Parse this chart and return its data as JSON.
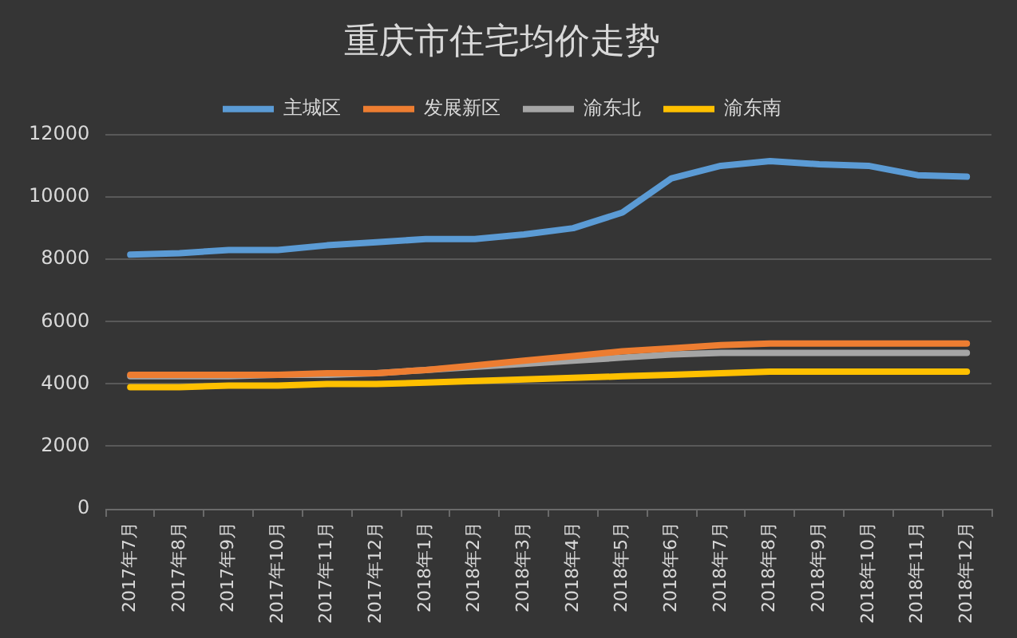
{
  "chart_data": {
    "type": "line",
    "title": "重庆市住宅均价走势",
    "categories": [
      "2017年7月",
      "2017年8月",
      "2017年9月",
      "2017年10月",
      "2017年11月",
      "2017年12月",
      "2018年1月",
      "2018年2月",
      "2018年3月",
      "2018年4月",
      "2018年5月",
      "2018年6月",
      "2018年7月",
      "2018年8月",
      "2018年9月",
      "2018年10月",
      "2018年11月",
      "2018年12月"
    ],
    "series": [
      {
        "name": "主城区",
        "color": "#5b9bd5",
        "values": [
          8150,
          8200,
          8300,
          8300,
          8450,
          8550,
          8650,
          8650,
          8800,
          9000,
          9500,
          10600,
          11000,
          11150,
          11050,
          11000,
          10700,
          10650
        ]
      },
      {
        "name": "发展新区",
        "color": "#ed7d31",
        "values": [
          4300,
          4300,
          4300,
          4300,
          4350,
          4350,
          4450,
          4600,
          4750,
          4900,
          5050,
          5150,
          5250,
          5300,
          5300,
          5300,
          5300,
          5300
        ]
      },
      {
        "name": "渝东北",
        "color": "#a5a5a5",
        "values": [
          4250,
          4250,
          4250,
          4300,
          4300,
          4350,
          4450,
          4550,
          4650,
          4750,
          4850,
          4950,
          5000,
          5000,
          5000,
          5000,
          5000,
          5000
        ]
      },
      {
        "name": "渝东南",
        "color": "#ffc000",
        "values": [
          3900,
          3900,
          3950,
          3950,
          4000,
          4000,
          4050,
          4100,
          4150,
          4200,
          4250,
          4300,
          4350,
          4400,
          4400,
          4400,
          4400,
          4400
        ]
      }
    ],
    "ylim": [
      0,
      12000
    ],
    "yticks": [
      0,
      2000,
      4000,
      6000,
      8000,
      10000,
      12000
    ],
    "grid": "y",
    "legend": "top",
    "line_style": "solid"
  }
}
